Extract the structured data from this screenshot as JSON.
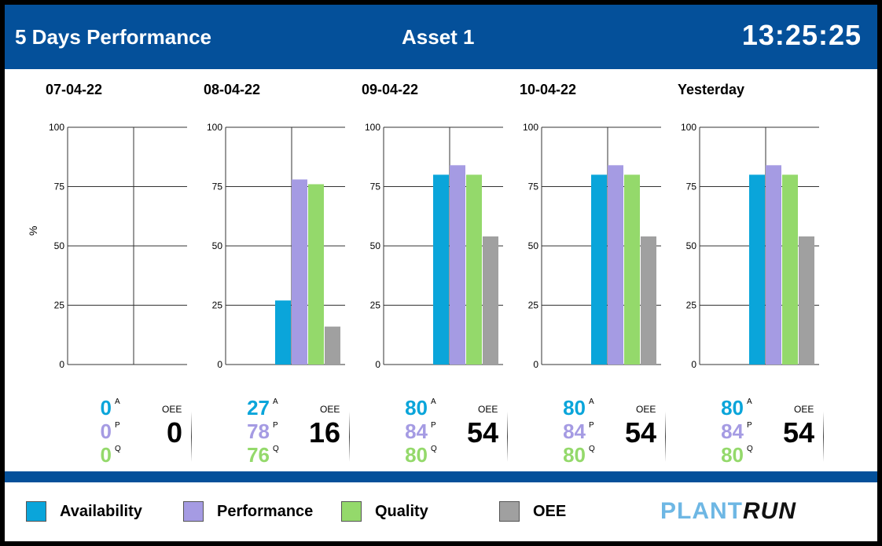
{
  "header": {
    "title": "5 Days Performance",
    "asset": "Asset 1",
    "clock": "13:25:25"
  },
  "chart_ylabel": "%",
  "oee_caption": "OEE",
  "colors": {
    "header_bg": "#04509a",
    "availability": "#0aa5da",
    "performance": "#a59be3",
    "quality": "#94d96b",
    "oee": "#a0a0a0"
  },
  "chart_data": [
    {
      "type": "bar",
      "title": "07-04-22",
      "categories": [
        "Availability",
        "Performance",
        "Quality",
        "OEE"
      ],
      "values": [
        0,
        0,
        0,
        0
      ],
      "ylim": [
        0,
        100
      ],
      "yticks": [
        0,
        25,
        50,
        75,
        100
      ],
      "ylabel": "%",
      "grid": true
    },
    {
      "type": "bar",
      "title": "08-04-22",
      "categories": [
        "Availability",
        "Performance",
        "Quality",
        "OEE"
      ],
      "values": [
        27,
        78,
        76,
        16
      ],
      "ylim": [
        0,
        100
      ],
      "yticks": [
        0,
        25,
        50,
        75,
        100
      ],
      "grid": true
    },
    {
      "type": "bar",
      "title": "09-04-22",
      "categories": [
        "Availability",
        "Performance",
        "Quality",
        "OEE"
      ],
      "values": [
        80,
        84,
        80,
        54
      ],
      "ylim": [
        0,
        100
      ],
      "yticks": [
        0,
        25,
        50,
        75,
        100
      ],
      "grid": true
    },
    {
      "type": "bar",
      "title": "10-04-22",
      "categories": [
        "Availability",
        "Performance",
        "Quality",
        "OEE"
      ],
      "values": [
        80,
        84,
        80,
        54
      ],
      "ylim": [
        0,
        100
      ],
      "yticks": [
        0,
        25,
        50,
        75,
        100
      ],
      "grid": true
    },
    {
      "type": "bar",
      "title": "Yesterday",
      "categories": [
        "Availability",
        "Performance",
        "Quality",
        "OEE"
      ],
      "values": [
        80,
        84,
        80,
        54
      ],
      "ylim": [
        0,
        100
      ],
      "yticks": [
        0,
        25,
        50,
        75,
        100
      ],
      "grid": true
    }
  ],
  "stats_letters": {
    "a": "A",
    "p": "P",
    "q": "Q"
  },
  "legend": [
    {
      "label": "Availability",
      "color": "#0aa5da"
    },
    {
      "label": "Performance",
      "color": "#a59be3"
    },
    {
      "label": "Quality",
      "color": "#94d96b"
    },
    {
      "label": "OEE",
      "color": "#a0a0a0"
    }
  ],
  "logo": {
    "part1": "PLANT",
    "part2": "RUN"
  }
}
